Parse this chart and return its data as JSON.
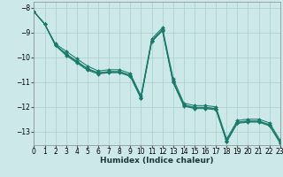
{
  "xlabel": "Humidex (Indice chaleur)",
  "background_color": "#cce8e8",
  "grid_color": "#aacece",
  "line_color": "#1a7a6a",
  "x_values": [
    0,
    1,
    2,
    3,
    4,
    5,
    6,
    7,
    8,
    9,
    10,
    11,
    12,
    13,
    14,
    15,
    16,
    17,
    18,
    19,
    20,
    21,
    22,
    23
  ],
  "series": [
    [
      -8.15,
      -8.65,
      -9.45,
      -9.75,
      -10.05,
      -10.35,
      -10.55,
      -10.5,
      -10.5,
      -10.65,
      -11.55,
      -9.25,
      -8.8,
      -10.85,
      -11.85,
      -11.95,
      -11.95,
      -12.0,
      -13.3,
      -12.55,
      -12.5,
      -12.5,
      -12.65,
      -13.35
    ],
    [
      -8.15,
      -8.65,
      -9.5,
      -9.85,
      -10.15,
      -10.45,
      -10.62,
      -10.57,
      -10.57,
      -10.72,
      -11.62,
      -9.32,
      -8.87,
      -10.95,
      -11.92,
      -12.02,
      -12.02,
      -12.07,
      -13.37,
      -12.62,
      -12.57,
      -12.57,
      -12.72,
      -13.42
    ],
    [
      -8.15,
      -8.65,
      -9.52,
      -9.92,
      -10.22,
      -10.52,
      -10.67,
      -10.62,
      -10.62,
      -10.77,
      -11.67,
      -9.37,
      -8.92,
      -11.02,
      -11.97,
      -12.07,
      -12.07,
      -12.12,
      -13.42,
      -12.67,
      -12.62,
      -12.62,
      -12.77,
      -13.47
    ],
    [
      -8.15,
      -8.65,
      -9.48,
      -9.88,
      -10.18,
      -10.48,
      -10.64,
      -10.59,
      -10.59,
      -10.74,
      -11.64,
      -9.34,
      -8.89,
      -10.99,
      -11.94,
      -12.04,
      -12.04,
      -12.09,
      -13.39,
      -12.64,
      -12.59,
      -12.59,
      -12.74,
      -13.44
    ]
  ],
  "xlim": [
    0,
    23
  ],
  "ylim": [
    -13.55,
    -7.75
  ],
  "yticks": [
    -8,
    -9,
    -10,
    -11,
    -12,
    -13
  ],
  "xticks": [
    0,
    1,
    2,
    3,
    4,
    5,
    6,
    7,
    8,
    9,
    10,
    11,
    12,
    13,
    14,
    15,
    16,
    17,
    18,
    19,
    20,
    21,
    22,
    23
  ],
  "tick_fontsize": 5.5,
  "xlabel_fontsize": 6.5,
  "marker": "D",
  "marker_size": 2.0,
  "linewidth": 0.75
}
